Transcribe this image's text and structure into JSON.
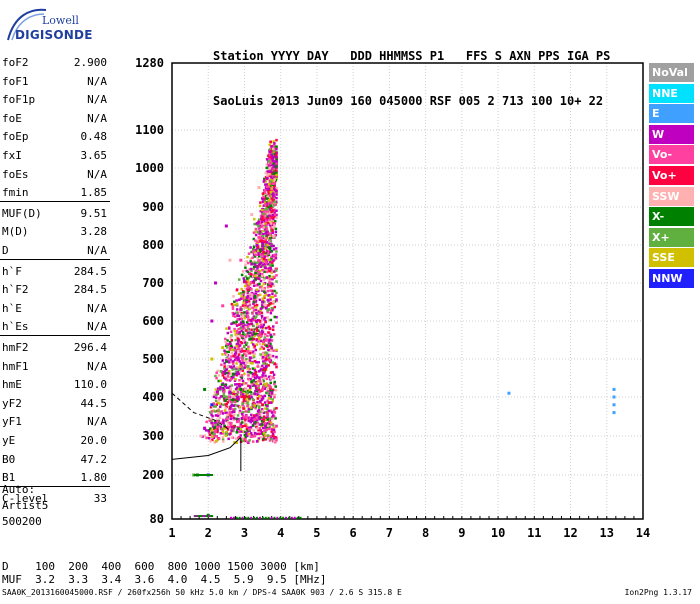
{
  "logo": {
    "line1": "Lowell",
    "line2": "DIGISONDE"
  },
  "header": {
    "line1": "Station YYYY DAY   DDD HHMMSS P1   FFS S AXN PPS IGA PS",
    "line2": "SaoLuis 2013 Jun09 160 045000 RSF 005 2 713 100 10+ 22"
  },
  "params": [
    {
      "label": "foF2",
      "value": "2.900"
    },
    {
      "label": "foF1",
      "value": "N/A"
    },
    {
      "label": "foF1p",
      "value": "N/A"
    },
    {
      "label": "foE",
      "value": "N/A"
    },
    {
      "label": "foEp",
      "value": "0.48"
    },
    {
      "label": "fxI",
      "value": "3.65"
    },
    {
      "label": "foEs",
      "value": "N/A"
    },
    {
      "label": "fmin",
      "value": "1.85"
    },
    {
      "label": "MUF(D)",
      "value": "9.51"
    },
    {
      "label": "M(D)",
      "value": "3.28"
    },
    {
      "label": "D",
      "value": "N/A"
    },
    {
      "label": "h`F",
      "value": "284.5"
    },
    {
      "label": "h`F2",
      "value": "284.5"
    },
    {
      "label": "h`E",
      "value": "N/A"
    },
    {
      "label": "h`Es",
      "value": "N/A"
    },
    {
      "label": "hmF2",
      "value": "296.4"
    },
    {
      "label": "hmF1",
      "value": "N/A"
    },
    {
      "label": "hmE",
      "value": "110.0"
    },
    {
      "label": "yF2",
      "value": "44.5"
    },
    {
      "label": "yF1",
      "value": "N/A"
    },
    {
      "label": "yE",
      "value": "20.0"
    },
    {
      "label": "B0",
      "value": "47.2"
    },
    {
      "label": "B1",
      "value": "1.80"
    },
    {
      "label": "C-level",
      "value": "33"
    }
  ],
  "auto": {
    "line1": "Auto:",
    "line2": "Artist5",
    "line3": "500200"
  },
  "legend": [
    {
      "label": "NoVal",
      "color": "#a0a0a0"
    },
    {
      "label": "NNE",
      "color": "#00e0ff"
    },
    {
      "label": "E",
      "color": "#3fa0ff"
    },
    {
      "label": "W",
      "color": "#c000c0"
    },
    {
      "label": "Vo-",
      "color": "#ff40a0"
    },
    {
      "label": "Vo+",
      "color": "#ff0040"
    },
    {
      "label": "SSW",
      "color": "#ffb0b0"
    },
    {
      "label": "X-",
      "color": "#008000"
    },
    {
      "label": "X+",
      "color": "#60b040"
    },
    {
      "label": "SSE",
      "color": "#d0c000"
    },
    {
      "label": "NNW",
      "color": "#2020ff"
    }
  ],
  "muf_table": {
    "line1": "D    100  200  400  600  800 1000 1500 3000 [km]",
    "line2": "MUF  3.2  3.3  3.4  3.6  4.0  4.5  5.9  9.5 [MHz]"
  },
  "footer": {
    "left": "SAA0K_2013160045000.RSF / 260fx256h 50 kHz 5.0 km / DPS-4 SAA0K 903 / 2.6 S 315.8 E",
    "right": "Ion2Png 1.3.17"
  },
  "chart_data": {
    "type": "scatter",
    "title": "",
    "xlabel": "",
    "ylabel": "",
    "xlim": [
      1,
      14
    ],
    "ylim": [
      80,
      1280
    ],
    "x_ticks": [
      1,
      2,
      3,
      4,
      5,
      6,
      7,
      8,
      9,
      10,
      11,
      12,
      13,
      14
    ],
    "y_ticks": [
      80,
      200,
      300,
      400,
      500,
      600,
      700,
      800,
      900,
      1000,
      1100,
      1280
    ],
    "grid": true,
    "series": [
      {
        "name": "W",
        "color": "#c000c0",
        "points": [
          [
            1.9,
            320
          ],
          [
            2.1,
            600
          ],
          [
            2.2,
            700
          ],
          [
            2.5,
            850
          ],
          [
            3.2,
            750
          ],
          [
            3.5,
            650
          ],
          [
            3.7,
            550
          ],
          [
            2.8,
            400
          ],
          [
            3.3,
            450
          ],
          [
            3.6,
            480
          ]
        ]
      },
      {
        "name": "Vo-",
        "color": "#ff40a0",
        "points": [
          [
            2.4,
            640
          ],
          [
            2.9,
            760
          ],
          [
            3.4,
            820
          ],
          [
            3.7,
            700
          ],
          [
            3.1,
            520
          ],
          [
            3.5,
            420
          ],
          [
            2.6,
            360
          ]
        ]
      },
      {
        "name": "Vo+",
        "color": "#ff0040",
        "points": [
          [
            3.3,
            460
          ],
          [
            3.6,
            500
          ],
          [
            3.7,
            580
          ],
          [
            3.0,
            400
          ],
          [
            3.5,
            380
          ]
        ]
      },
      {
        "name": "SSW",
        "color": "#ffb0b0",
        "points": [
          [
            3.4,
            950
          ],
          [
            3.7,
            1000
          ],
          [
            3.2,
            880
          ],
          [
            2.6,
            760
          ],
          [
            3.8,
            650
          ],
          [
            1.8,
            300
          ]
        ]
      },
      {
        "name": "X-",
        "color": "#008000",
        "points": [
          [
            1.9,
            420
          ],
          [
            2.7,
            460
          ],
          [
            2.9,
            420
          ],
          [
            3.2,
            440
          ],
          [
            1.7,
            200
          ],
          [
            2.0,
            90
          ]
        ]
      },
      {
        "name": "X+",
        "color": "#60b040",
        "points": [
          [
            2.5,
            400
          ],
          [
            3.1,
            480
          ],
          [
            1.6,
            200
          ]
        ]
      },
      {
        "name": "SSE",
        "color": "#d0c000",
        "points": [
          [
            2.4,
            530
          ],
          [
            2.1,
            500
          ]
        ]
      },
      {
        "name": "E",
        "color": "#3fa0ff",
        "points": [
          [
            10.3,
            410
          ],
          [
            13.2,
            400
          ],
          [
            13.2,
            380
          ],
          [
            13.2,
            360
          ],
          [
            13.2,
            420
          ]
        ]
      },
      {
        "name": "NNW",
        "color": "#2020ff",
        "points": [
          [
            2.1,
            380
          ],
          [
            2.0,
            200
          ]
        ]
      }
    ],
    "profile": [
      [
        1,
        240
      ],
      [
        2,
        250
      ],
      [
        2.6,
        270
      ],
      [
        2.9,
        296.4
      ]
    ]
  }
}
